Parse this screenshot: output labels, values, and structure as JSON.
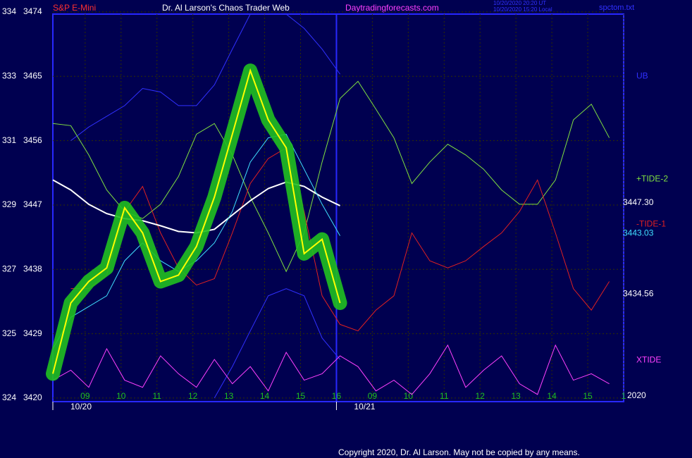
{
  "chart_data": {
    "type": "line",
    "header": {
      "symbol": "S&P E-Mini",
      "title": "Dr. Al Larson's Chaos Trader Web",
      "site": "Daytradingforecasts.com",
      "stamp1": "10/20/2020 20:20 UT",
      "stamp2": "10/20/2020 15:20 Local",
      "file": "spctom.txt"
    },
    "footer": "Copyright 2020, Dr. Al Larson. May not be copied by any means.",
    "xlim": [
      0.1,
      16
    ],
    "ylim": [
      3419.5,
      3473.7
    ],
    "yticks": [
      3420,
      3429,
      3438,
      3447,
      3456,
      3465,
      3474
    ],
    "ylabels_left": [
      "324",
      "325",
      "327",
      "329",
      "331",
      "333",
      "334"
    ],
    "xticks": [
      {
        "value": 1,
        "label": "09"
      },
      {
        "value": 2,
        "label": "10"
      },
      {
        "value": 3,
        "label": "11"
      },
      {
        "value": 4,
        "label": "12"
      },
      {
        "value": 5,
        "label": "13"
      },
      {
        "value": 6,
        "label": "14"
      },
      {
        "value": 7,
        "label": "15"
      },
      {
        "value": 8,
        "label": "16"
      },
      {
        "value": 9,
        "label": "09"
      },
      {
        "value": 10,
        "label": "10"
      },
      {
        "value": 11,
        "label": "11"
      },
      {
        "value": 12,
        "label": "12"
      },
      {
        "value": 13,
        "label": "13"
      },
      {
        "value": 14,
        "label": "14"
      },
      {
        "value": 15,
        "label": "15"
      },
      {
        "value": 16,
        "label": "1"
      }
    ],
    "dates": [
      {
        "value": 0.1,
        "label": "10/20"
      },
      {
        "value": 8,
        "label": "10/21"
      }
    ],
    "grid": true,
    "year_label": "2020",
    "right_values": [
      {
        "value": 3447.3,
        "label": "3447.30",
        "color": "#ffffff"
      },
      {
        "value": 3443.03,
        "label": "3443.03",
        "color": "#40e0ff"
      },
      {
        "value": 3434.56,
        "label": "3434.56",
        "color": "#ffffff"
      }
    ],
    "x": [
      0.1,
      0.6,
      1.1,
      1.6,
      2.1,
      2.6,
      3.1,
      3.6,
      4.1,
      4.6,
      5.1,
      5.6,
      6.1,
      6.6,
      7.1,
      7.6,
      8.1,
      8.6,
      9.1,
      9.6,
      10.1,
      10.6,
      11.1,
      11.6,
      12.1,
      12.6,
      13.1,
      13.6,
      14.1,
      14.6,
      15.1,
      15.6
    ],
    "series": [
      {
        "color": "#3030ff",
        "values": [
          null,
          3456.0,
          3457.9,
          3459.4,
          3460.9,
          3463.3,
          3462.8,
          3460.9,
          3460.9,
          3463.8,
          3468.8,
          3473.7,
          3473.7,
          3473.7,
          3471.7,
          3468.8,
          3465.3,
          null,
          null,
          null,
          null,
          null,
          null,
          null,
          null,
          null,
          null,
          null,
          null,
          null,
          null,
          null
        ]
      },
      {
        "color": "#3030ff",
        "values": [
          null,
          null,
          null,
          null,
          null,
          null,
          null,
          null,
          null,
          3420.0,
          3424.4,
          3429.4,
          3434.3,
          3435.3,
          3434.3,
          3428.4,
          3425.4,
          null,
          null,
          null,
          null,
          null,
          null,
          null,
          null,
          null,
          null,
          null,
          null,
          null,
          null,
          null
        ]
      },
      {
        "name": "XTIDE",
        "color": "#ff40ff",
        "values": [
          3422.5,
          3423.9,
          3421.5,
          3426.9,
          3422.5,
          3421.5,
          3425.9,
          3423.4,
          3421.5,
          3425.4,
          3422.0,
          3424.4,
          3421.0,
          3426.4,
          3422.5,
          3423.4,
          3425.9,
          3424.4,
          3421.0,
          3422.5,
          3420.5,
          3423.4,
          3427.4,
          3421.5,
          3423.9,
          3425.9,
          3422.0,
          3420.5,
          3427.4,
          3422.5,
          3423.4,
          3422.0
        ]
      },
      {
        "name": "+TIDE-2",
        "color": "#80e040",
        "values": [
          3458.4,
          3458.1,
          3454.0,
          3449.1,
          3446.1,
          3445.1,
          3447.1,
          3451.0,
          3456.9,
          3458.4,
          3454.0,
          3448.1,
          3443.1,
          3437.7,
          3443.1,
          3453.0,
          3461.9,
          3464.3,
          3460.4,
          3456.4,
          3450.0,
          3453.0,
          3455.5,
          3454.0,
          3452.0,
          3449.1,
          3447.1,
          3447.1,
          3450.5,
          3458.9,
          3461.1,
          3456.4
        ]
      },
      {
        "name": "-TIDE-1",
        "color": "#e02020",
        "values": [
          null,
          3435.3,
          3435.3,
          3437.2,
          3446.1,
          3449.6,
          3443.1,
          3438.2,
          3435.8,
          3436.7,
          3443.1,
          3450.0,
          3453.5,
          3455.0,
          3446.1,
          3434.3,
          3430.3,
          3429.4,
          3432.3,
          3434.3,
          3443.1,
          3439.2,
          3438.2,
          3439.2,
          3441.2,
          3443.1,
          3446.1,
          3450.5,
          3443.1,
          3435.3,
          3432.3,
          3436.3
        ]
      },
      {
        "color": "#ffffff",
        "values": [
          3450.5,
          3449.1,
          3447.1,
          3445.8,
          3445.1,
          3444.8,
          3444.1,
          3443.3,
          3443.1,
          3443.6,
          3445.6,
          3447.6,
          3449.3,
          3450.2,
          3449.6,
          3448.1,
          3446.9,
          null,
          null,
          null,
          null,
          null,
          null,
          null,
          null,
          null,
          null,
          null,
          null,
          null,
          null,
          null
        ]
      },
      {
        "color": "#40e0ff",
        "values": [
          3426.9,
          3431.3,
          3432.8,
          3434.3,
          3439.2,
          3441.7,
          3439.2,
          3437.7,
          3439.2,
          3441.7,
          3446.1,
          3453.0,
          3456.4,
          3456.9,
          3452.0,
          3447.1,
          3442.7,
          null,
          null,
          null,
          null,
          null,
          null,
          null,
          null,
          null,
          null,
          null,
          null,
          null,
          null,
          null
        ]
      },
      {
        "color": "#ffff00",
        "halo": "#20c020",
        "values": [
          3423.4,
          3433.3,
          3436.3,
          3438.2,
          3446.6,
          3443.1,
          3436.3,
          3437.2,
          3441.2,
          3448.1,
          3456.9,
          3465.8,
          3458.9,
          3455.0,
          3440.2,
          3442.2,
          3433.3,
          null,
          null,
          null,
          null,
          null,
          null,
          null,
          null,
          null,
          null,
          null,
          null,
          null,
          null,
          null
        ]
      }
    ],
    "labels": [
      {
        "text": "UB",
        "color": "#3030ff",
        "value": 3465
      },
      {
        "text": "+TIDE-2",
        "color": "#80e040",
        "value": 3450.6
      },
      {
        "text": "-TIDE-1",
        "color": "#e02020",
        "value": 3444.3
      },
      {
        "text": "XTIDE",
        "color": "#ff40ff",
        "value": 3425.3
      }
    ]
  }
}
